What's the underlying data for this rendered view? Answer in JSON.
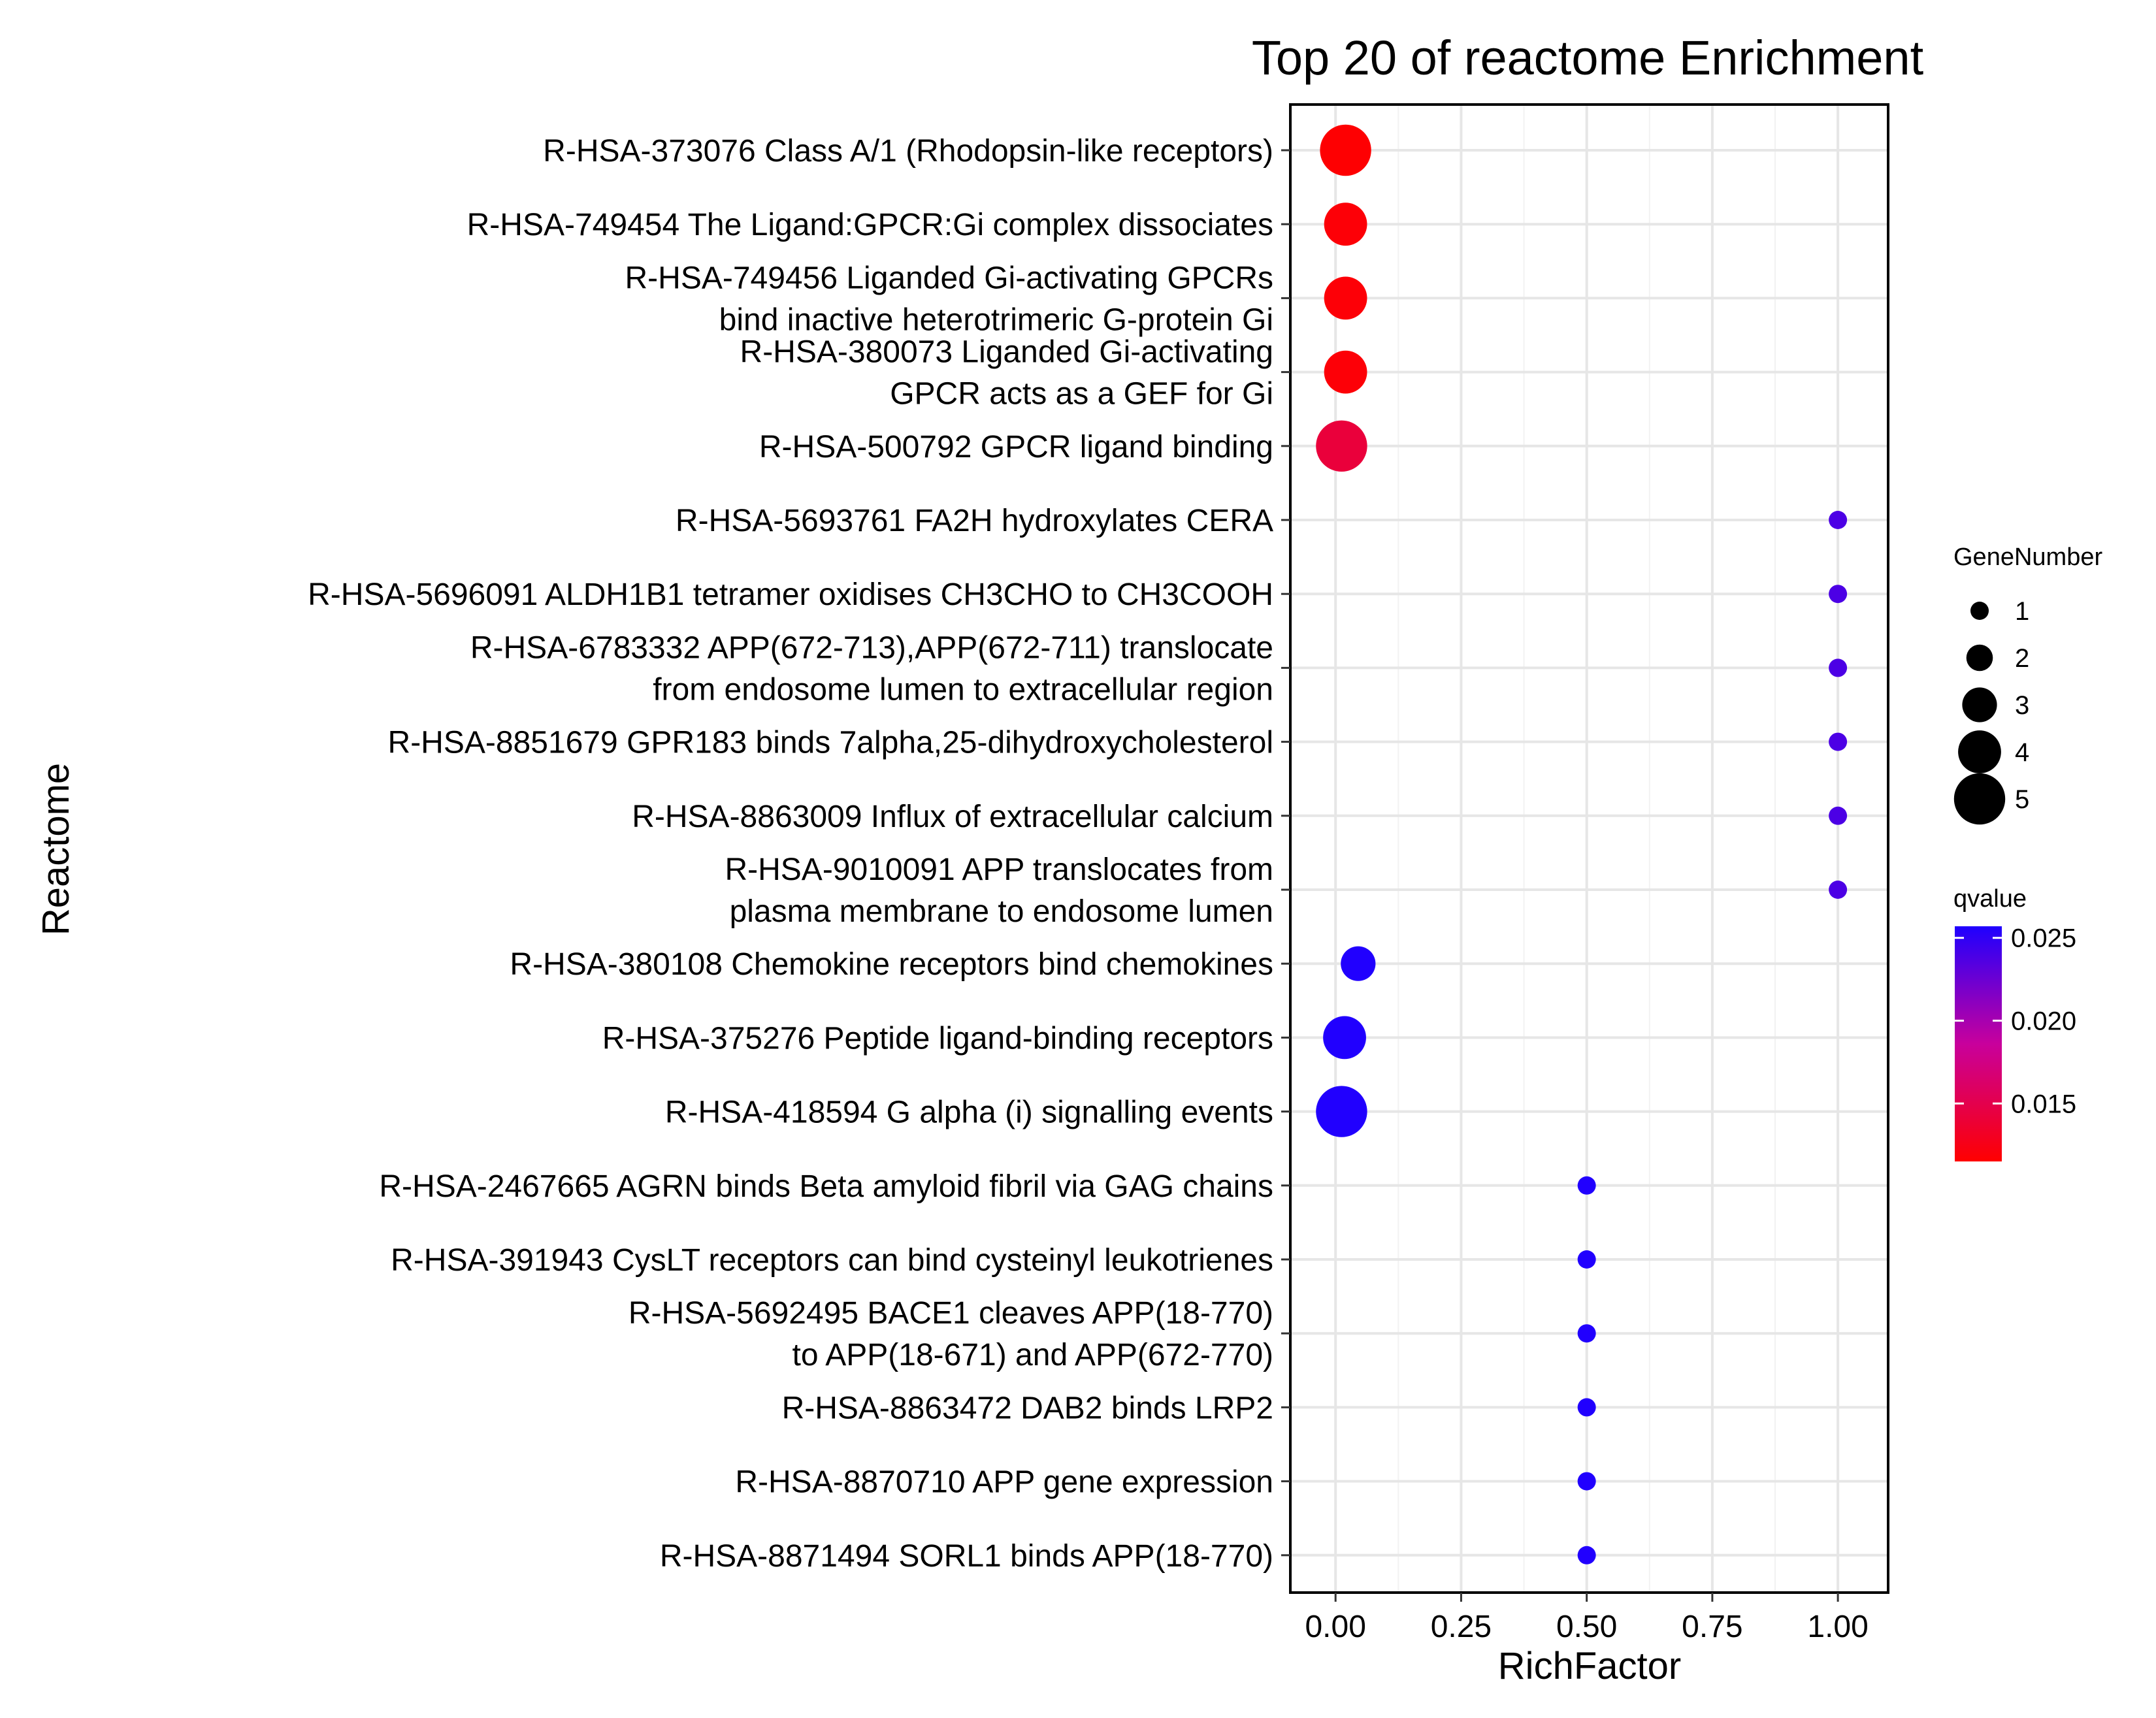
{
  "chart_data": {
    "type": "scatter",
    "title": "Top 20 of reactome Enrichment",
    "xlabel": "RichFactor",
    "ylabel": "Reactome",
    "xlim": [
      -0.09,
      1.1
    ],
    "xticks": [
      0.0,
      0.25,
      0.5,
      0.75,
      1.0
    ],
    "xtick_labels": [
      "0.00",
      "0.25",
      "0.50",
      "0.75",
      "1.00"
    ],
    "grid": true,
    "legend_placement": "right",
    "size_legend": {
      "title": "GeneNumber",
      "values": [
        1,
        2,
        3,
        4,
        5
      ],
      "labels": [
        "1",
        "2",
        "3",
        "4",
        "5"
      ]
    },
    "color_legend": {
      "title": "qvalue",
      "min": 0.0115,
      "max": 0.0257,
      "ticks": [
        0.015,
        0.02,
        0.025
      ],
      "tick_labels": [
        "0.015",
        "0.020",
        "0.025"
      ],
      "low_color": "#ff0000",
      "mid_color": "#c8009c",
      "high_color": "#1f00ff"
    },
    "points": [
      {
        "term": [
          "R-HSA-373076 Class A/1 (Rhodopsin-like receptors)"
        ],
        "x": 0.02,
        "genes": 5,
        "q": 0.0116
      },
      {
        "term": [
          "R-HSA-749454 The Ligand:GPCR:Gi complex dissociates"
        ],
        "x": 0.02,
        "genes": 4,
        "q": 0.0118
      },
      {
        "term": [
          "R-HSA-749456 Liganded Gi-activating GPCRs",
          "bind inactive heterotrimeric G-protein Gi"
        ],
        "x": 0.02,
        "genes": 4,
        "q": 0.0118
      },
      {
        "term": [
          "R-HSA-380073 Liganded Gi-activating",
          "GPCR acts as a GEF for Gi"
        ],
        "x": 0.02,
        "genes": 4,
        "q": 0.0118
      },
      {
        "term": [
          "R-HSA-500792 GPCR ligand binding"
        ],
        "x": 0.012,
        "genes": 5,
        "q": 0.0142
      },
      {
        "term": [
          "R-HSA-5693761 FA2H hydroxylates CERA"
        ],
        "x": 1.0,
        "genes": 1,
        "q": 0.0238
      },
      {
        "term": [
          "R-HSA-5696091 ALDH1B1 tetramer oxidises CH3CHO to CH3COOH"
        ],
        "x": 1.0,
        "genes": 1,
        "q": 0.0238
      },
      {
        "term": [
          "R-HSA-6783332 APP(672-713),APP(672-711) translocate",
          "from endosome lumen to extracellular region"
        ],
        "x": 1.0,
        "genes": 1,
        "q": 0.0238
      },
      {
        "term": [
          "R-HSA-8851679 GPR183 binds 7alpha,25-dihydroxycholesterol"
        ],
        "x": 1.0,
        "genes": 1,
        "q": 0.0238
      },
      {
        "term": [
          "R-HSA-8863009 Influx of extracellular calcium"
        ],
        "x": 1.0,
        "genes": 1,
        "q": 0.0238
      },
      {
        "term": [
          "R-HSA-9010091 APP translocates from",
          "plasma membrane to endosome lumen"
        ],
        "x": 1.0,
        "genes": 1,
        "q": 0.0238
      },
      {
        "term": [
          "R-HSA-380108 Chemokine receptors bind chemokines"
        ],
        "x": 0.045,
        "genes": 3,
        "q": 0.0256
      },
      {
        "term": [
          "R-HSA-375276 Peptide ligand-binding receptors"
        ],
        "x": 0.018,
        "genes": 4,
        "q": 0.0256
      },
      {
        "term": [
          "R-HSA-418594 G alpha (i) signalling events"
        ],
        "x": 0.012,
        "genes": 5,
        "q": 0.0256
      },
      {
        "term": [
          "R-HSA-2467665 AGRN binds Beta amyloid fibril via GAG chains"
        ],
        "x": 0.5,
        "genes": 1,
        "q": 0.0256
      },
      {
        "term": [
          "R-HSA-391943 CysLT receptors can bind cysteinyl leukotrienes"
        ],
        "x": 0.5,
        "genes": 1,
        "q": 0.0256
      },
      {
        "term": [
          "R-HSA-5692495 BACE1 cleaves APP(18-770)",
          "to APP(18-671) and APP(672-770)"
        ],
        "x": 0.5,
        "genes": 1,
        "q": 0.0256
      },
      {
        "term": [
          "R-HSA-8863472 DAB2 binds LRP2"
        ],
        "x": 0.5,
        "genes": 1,
        "q": 0.0256
      },
      {
        "term": [
          "R-HSA-8870710 APP gene expression"
        ],
        "x": 0.5,
        "genes": 1,
        "q": 0.0256
      },
      {
        "term": [
          "R-HSA-8871494 SORL1 binds APP(18-770)"
        ],
        "x": 0.5,
        "genes": 1,
        "q": 0.0256
      }
    ]
  }
}
